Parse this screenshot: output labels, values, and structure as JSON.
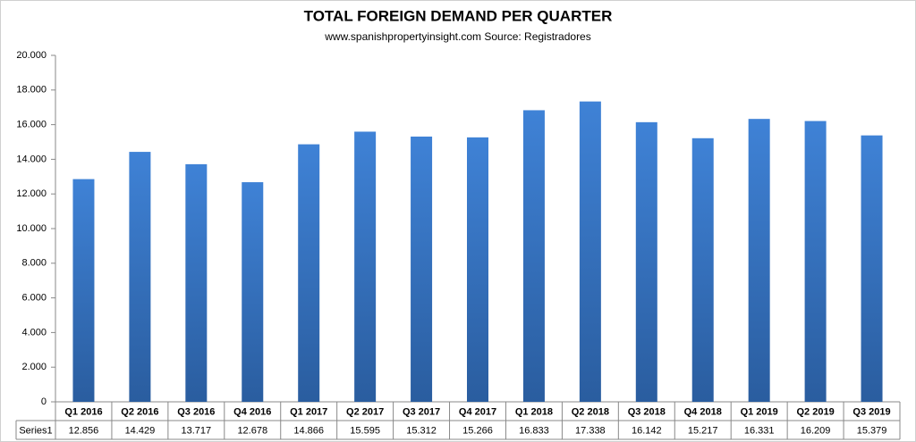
{
  "chart_data": {
    "type": "bar",
    "title": "TOTAL FOREIGN DEMAND PER QUARTER",
    "subtitle": "www.spanishpropertyinsight.com Source: Registradores",
    "categories": [
      "Q1 2016",
      "Q2 2016",
      "Q3 2016",
      "Q4 2016",
      "Q1 2017",
      "Q2 2017",
      "Q3 2017",
      "Q4 2017",
      "Q1 2018",
      "Q2 2018",
      "Q3 2018",
      "Q4 2018",
      "Q1 2019",
      "Q2 2019",
      "Q3 2019"
    ],
    "series": [
      {
        "name": "Series1",
        "color": "#3a7bd0",
        "values": [
          12856,
          14429,
          13717,
          12678,
          14866,
          15595,
          15312,
          15266,
          16833,
          17338,
          16142,
          15217,
          16331,
          16209,
          15379
        ],
        "value_labels": [
          "12.856",
          "14.429",
          "13.717",
          "12.678",
          "14.866",
          "15.595",
          "15.312",
          "15.266",
          "16.833",
          "17.338",
          "16.142",
          "15.217",
          "16.331",
          "16.209",
          "15.379"
        ]
      }
    ],
    "ylim": [
      0,
      20000
    ],
    "yticks": [
      0,
      {
        "value": 2000,
        "label": "2.000"
      },
      {
        "value": 4000,
        "label": "4.000"
      },
      {
        "value": 6000,
        "label": "6.000"
      },
      {
        "value": 8000,
        "label": "8.000"
      },
      {
        "value": 10000,
        "label": "10.000"
      },
      {
        "value": 12000,
        "label": "12.000"
      },
      {
        "value": 14000,
        "label": "14.000"
      },
      {
        "value": 16000,
        "label": "16.000"
      },
      {
        "value": 18000,
        "label": "18.000"
      },
      {
        "value": 20000,
        "label": "20.000"
      }
    ],
    "grid": false
  }
}
